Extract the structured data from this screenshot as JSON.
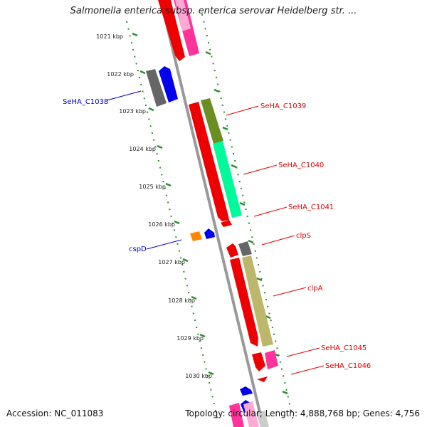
{
  "title": "Salmonella enterica subsp. enterica serovar Heidelberg str. ...",
  "footer": {
    "accession": "Accession: NC_011083",
    "summary": "Topology: circular; Length: 4,888,768 bp; Genes: 4,756"
  },
  "colors": {
    "backbone": "#999999",
    "tick": "#2e8b2e",
    "red_label": "#e00000",
    "blue_label": "#0000cc"
  },
  "ticks": [
    "1021 kbp",
    "1022 kbp",
    "1023 kbp",
    "1024 kbp",
    "1025 kbp",
    "1026 kbp",
    "1027 kbp",
    "1028 kbp",
    "1029 kbp",
    "1030 kbp"
  ],
  "gene_labels": [
    {
      "text": "SeHA_C1038",
      "color": "blue"
    },
    {
      "text": "SeHA_C1039",
      "color": "red"
    },
    {
      "text": "SeHA_C1040",
      "color": "red"
    },
    {
      "text": "SeHA_C1041",
      "color": "red"
    },
    {
      "text": "cspD",
      "color": "blue"
    },
    {
      "text": "clpS",
      "color": "red"
    },
    {
      "text": "clpA",
      "color": "red"
    },
    {
      "text": "SeHA_C1045",
      "color": "red"
    },
    {
      "text": "SeHA_C1046",
      "color": "red"
    }
  ]
}
